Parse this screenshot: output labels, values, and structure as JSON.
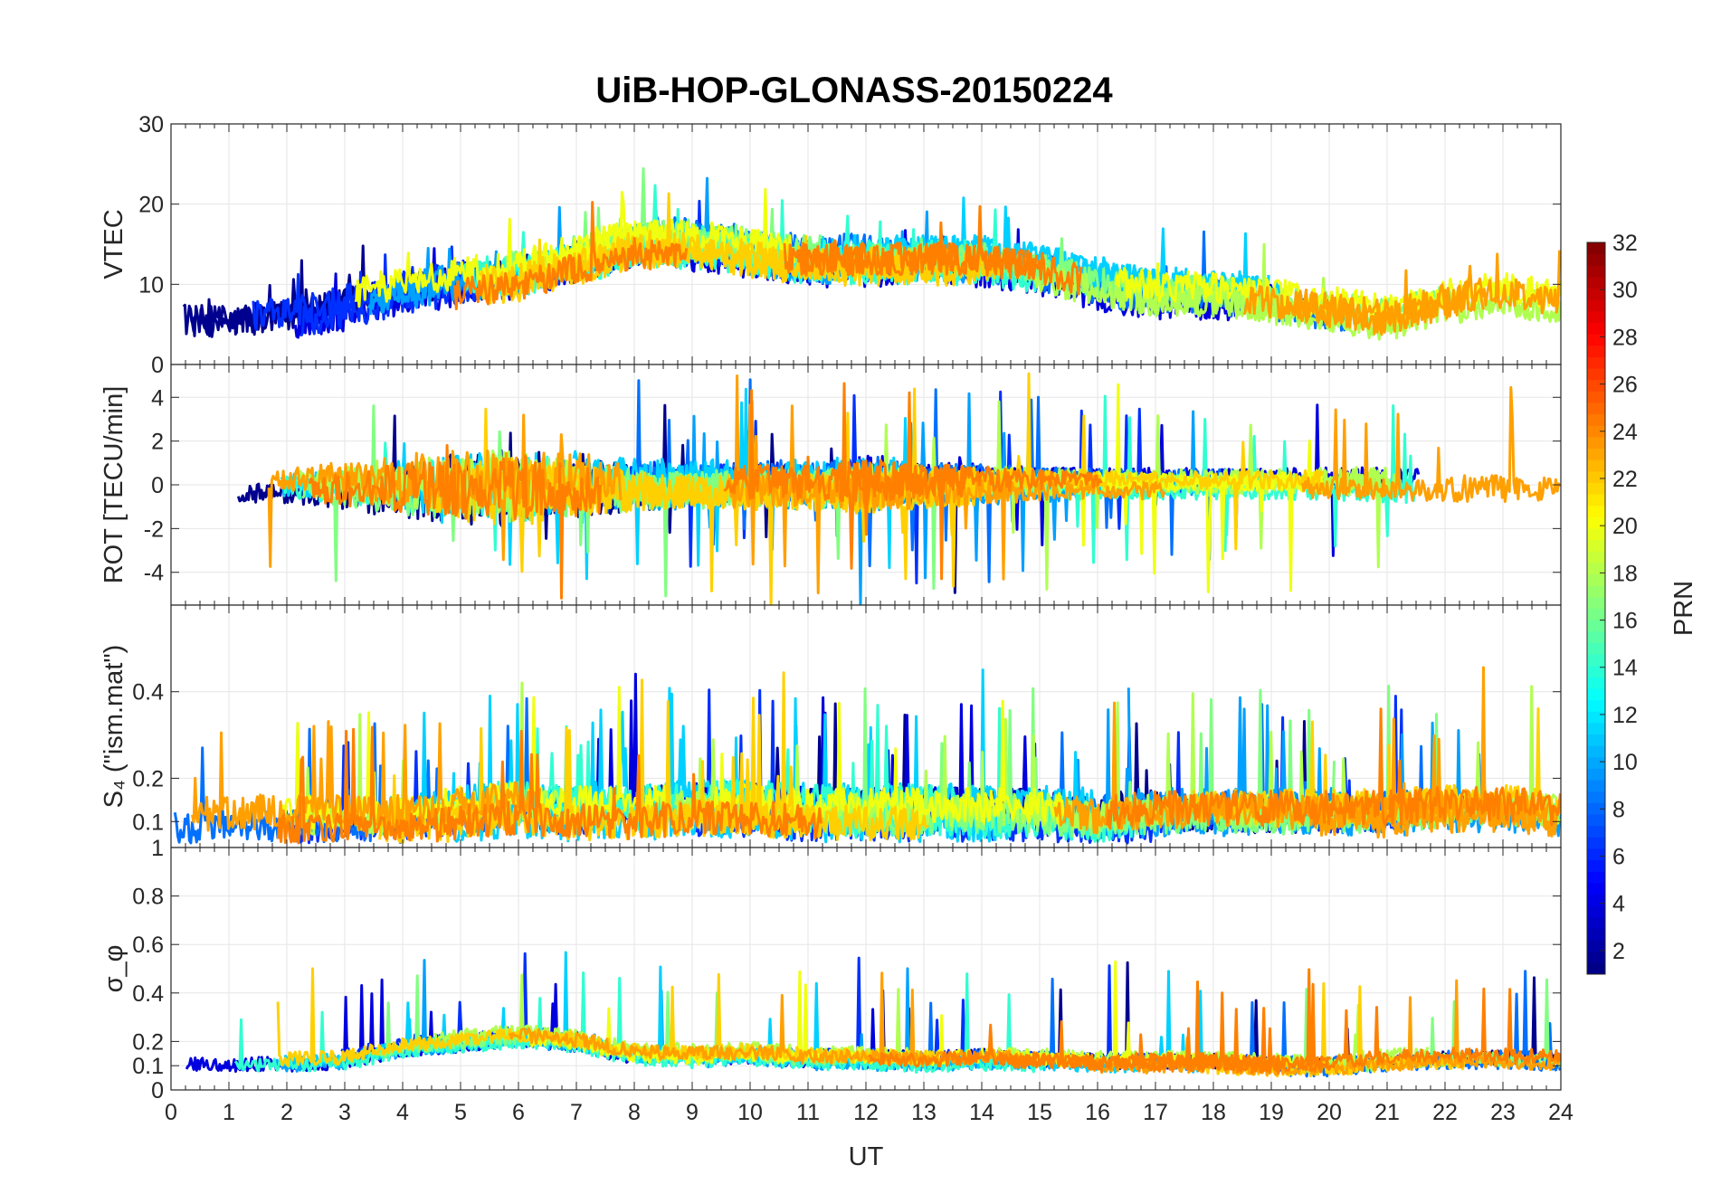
{
  "chart_data": {
    "type": "line",
    "title": "UiB-HOP-GLONASS-20150224",
    "xlabel": "UT",
    "xlim": [
      0,
      24
    ],
    "xticks": [
      "0",
      "1",
      "2",
      "3",
      "4",
      "5",
      "6",
      "7",
      "8",
      "9",
      "10",
      "11",
      "12",
      "13",
      "14",
      "15",
      "16",
      "17",
      "18",
      "19",
      "20",
      "21",
      "22",
      "23",
      "24"
    ],
    "grid": true,
    "panels": [
      {
        "ylabel": "VTEC",
        "ylim": [
          0,
          30
        ],
        "yticks": [
          "0",
          "10",
          "20",
          "30"
        ],
        "ytick_values": [
          0,
          10,
          20,
          30
        ],
        "profile": {
          "base": [
            5,
            5,
            5.5,
            7,
            9,
            10,
            11,
            13,
            15,
            15,
            14,
            13,
            13,
            13,
            13,
            12,
            10,
            9,
            9,
            8,
            7,
            6,
            8,
            9,
            8
          ],
          "noise": 2.0,
          "spike_prob": 0.01,
          "spike": 5,
          "floor": 1.5
        }
      },
      {
        "ylabel": "ROT [TECU/min]",
        "ylim": [
          -5.5,
          5.5
        ],
        "yticks": [
          "-4",
          "-2",
          "0",
          "2",
          "4"
        ],
        "ytick_values": [
          -4,
          -2,
          0,
          2,
          4
        ],
        "profile": {
          "base": [
            0,
            0,
            0,
            0,
            0,
            0,
            0,
            0,
            0,
            0,
            0,
            0,
            0,
            0,
            0,
            0,
            0,
            0,
            0,
            0,
            0,
            0,
            0,
            0,
            0
          ],
          "noise_by_hour": [
            0.4,
            0.4,
            0.5,
            0.8,
            1.2,
            1.4,
            1.6,
            1.2,
            0.9,
            0.8,
            0.8,
            0.8,
            1.0,
            0.8,
            0.6,
            0.5,
            0.4,
            0.4,
            0.4,
            0.4,
            0.5,
            0.5,
            0.6,
            0.6,
            0.5
          ],
          "spike_prob": 0.02,
          "spike": 3.5
        }
      },
      {
        "ylabel": "S₄ (\"ism.mat\")",
        "ylim": [
          0.04,
          0.6
        ],
        "yticks": [
          "0.1",
          "0.2",
          "0.4"
        ],
        "ytick_values": [
          0.1,
          0.2,
          0.4
        ],
        "profile": {
          "base": [
            0.09,
            0.1,
            0.1,
            0.1,
            0.1,
            0.12,
            0.13,
            0.12,
            0.12,
            0.13,
            0.13,
            0.12,
            0.12,
            0.12,
            0.12,
            0.12,
            0.11,
            0.12,
            0.12,
            0.12,
            0.12,
            0.12,
            0.13,
            0.13,
            0.12
          ],
          "noise": 0.04,
          "spike_prob": 0.025,
          "spike": 0.22,
          "floor": 0.05
        }
      },
      {
        "ylabel": "σ_φ",
        "ylim": [
          0,
          1
        ],
        "yticks": [
          "0",
          "0.1",
          "0.2",
          "0.4",
          "0.6",
          "0.8",
          "1"
        ],
        "ytick_values": [
          0,
          0.1,
          0.2,
          0.4,
          0.6,
          0.8,
          1
        ],
        "profile": {
          "base": [
            0.12,
            0.12,
            0.12,
            0.13,
            0.18,
            0.2,
            0.22,
            0.2,
            0.15,
            0.14,
            0.15,
            0.13,
            0.13,
            0.12,
            0.13,
            0.12,
            0.11,
            0.11,
            0.11,
            0.1,
            0.1,
            0.12,
            0.13,
            0.13,
            0.12
          ],
          "noise": 0.03,
          "spike_prob": 0.012,
          "spike": 0.28,
          "floor": 0.05
        }
      }
    ],
    "series": [
      {
        "name": "1",
        "color": "#00008f"
      },
      {
        "name": "3",
        "color": "#0000df"
      },
      {
        "name": "5",
        "color": "#0030ff"
      },
      {
        "name": "7",
        "color": "#0070ff"
      },
      {
        "name": "9",
        "color": "#00a0ff"
      },
      {
        "name": "11",
        "color": "#00d0ff"
      },
      {
        "name": "13",
        "color": "#30ffd0"
      },
      {
        "name": "15",
        "color": "#80ff80"
      },
      {
        "name": "17",
        "color": "#b0ff50"
      },
      {
        "name": "19",
        "color": "#f0ff10"
      },
      {
        "name": "21",
        "color": "#ffd000"
      },
      {
        "name": "23",
        "color": "#ffa000"
      },
      {
        "name": "24",
        "color": "#ff8000"
      }
    ],
    "colorbar": {
      "label": "PRN",
      "ticks": [
        "2",
        "4",
        "6",
        "8",
        "10",
        "12",
        "14",
        "16",
        "18",
        "20",
        "22",
        "24",
        "26",
        "28",
        "30",
        "32"
      ],
      "tick_values": [
        2,
        4,
        6,
        8,
        10,
        12,
        14,
        16,
        18,
        20,
        22,
        24,
        26,
        28,
        30,
        32
      ],
      "range": [
        1,
        32
      ]
    }
  }
}
